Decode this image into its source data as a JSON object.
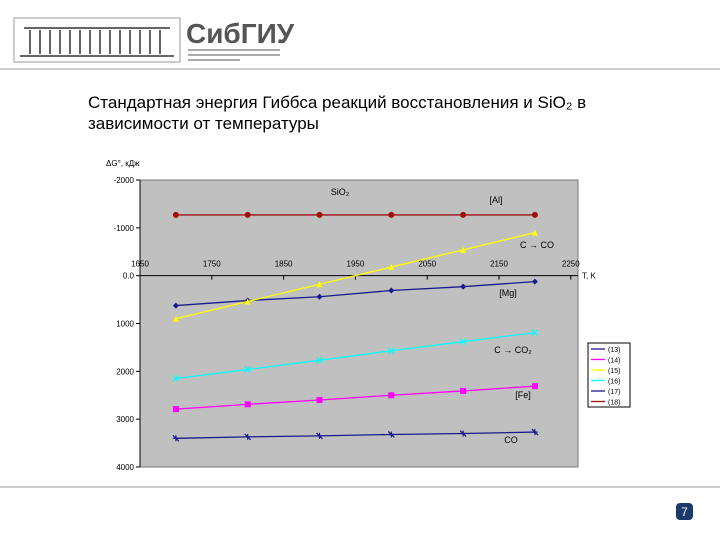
{
  "header": {
    "logo": "СибГИУ"
  },
  "page_number": "7",
  "chart_data": {
    "type": "line",
    "title": "Стандартная энергия Гиббса реакций восстановления и SiO₂ в зависимости от температуры",
    "y_label": "ΔG°, кДж",
    "x_label": "T, K",
    "x": [
      1700,
      1800,
      1900,
      2000,
      2100,
      2200
    ],
    "xlim": [
      1650,
      2260
    ],
    "xticks": [
      1650,
      1750,
      1850,
      1950,
      2050,
      2150,
      2250
    ],
    "ylim": [
      -2000,
      4000
    ],
    "y_inverted": true,
    "yticks": [
      -2000,
      -1000,
      {
        "value": 0,
        "label": "0.0"
      },
      1000,
      2000,
      3000,
      4000
    ],
    "plot_background": "#c0c0c0",
    "series": [
      {
        "name": "(13)",
        "color": "#1a1a8c",
        "marker": "diamond",
        "values": [
          625,
          520,
          440,
          310,
          230,
          125
        ]
      },
      {
        "name": "(14)",
        "color": "#ff00ff",
        "marker": "square",
        "values": [
          2790,
          2690,
          2600,
          2500,
          2410,
          2310
        ]
      },
      {
        "name": "(15)",
        "color": "#ffff00",
        "marker": "triangle",
        "values": [
          900,
          540,
          180,
          -180,
          -540,
          -900
        ]
      },
      {
        "name": "(16)",
        "color": "#00ffff",
        "marker": "cross",
        "values": [
          2150,
          1960,
          1770,
          1570,
          1380,
          1190
        ]
      },
      {
        "name": "(17)",
        "color": "#1a1a8c",
        "marker": "star",
        "values": [
          3400,
          3370,
          3350,
          3320,
          3300,
          3270
        ]
      },
      {
        "name": "(18)",
        "color": "#a01010",
        "marker": "circle",
        "values": [
          -1270,
          -1270,
          -1270,
          -1270,
          -1270,
          -1270
        ]
      }
    ],
    "annotations": [
      "SiO₂",
      "[Al]",
      "C → CO",
      "[Mg]",
      "C → CO₂",
      "[Fe]",
      "CO"
    ]
  }
}
